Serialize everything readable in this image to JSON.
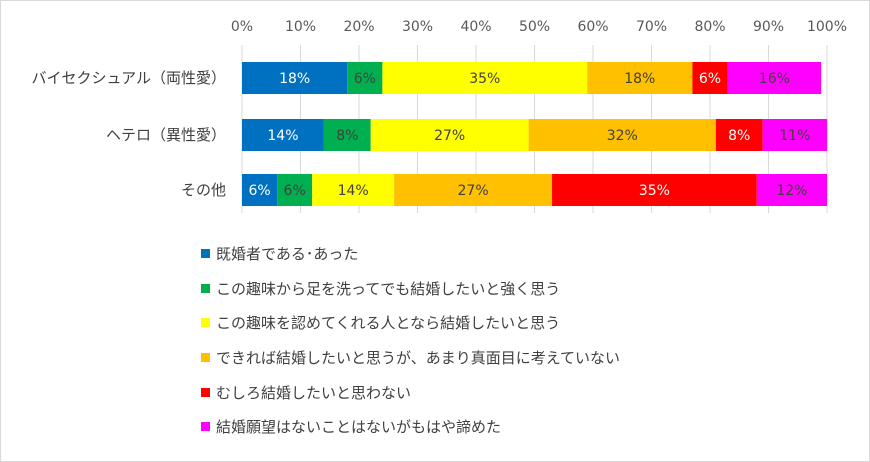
{
  "chart_data": {
    "type": "bar",
    "stacked": true,
    "orientation": "horizontal",
    "xlim": [
      0,
      100
    ],
    "x_ticks": [
      "0%",
      "10%",
      "20%",
      "30%",
      "40%",
      "50%",
      "60%",
      "70%",
      "80%",
      "90%",
      "100%"
    ],
    "grid": true,
    "legend_position": "bottom",
    "categories": [
      "バイセクシュアル（両性愛）",
      "ヘテロ（異性愛）",
      "その他"
    ],
    "series": [
      {
        "name": "既婚者である･あった",
        "color": "#0070C0",
        "values": [
          18,
          14,
          6
        ],
        "labels": [
          "18%",
          "14%",
          "6%"
        ]
      },
      {
        "name": "この趣味から足を洗ってでも結婚したいと強く思う",
        "color": "#00B050",
        "values": [
          6,
          8,
          6
        ],
        "labels": [
          "6%",
          "8%",
          "6%"
        ]
      },
      {
        "name": "この趣味を認めてくれる人となら結婚したいと思う",
        "color": "#FFFF00",
        "values": [
          35,
          27,
          14
        ],
        "labels": [
          "35%",
          "27%",
          "14%"
        ]
      },
      {
        "name": "できれば結婚したいと思うが、あまり真面目に考えていない",
        "color": "#FFC000",
        "values": [
          18,
          32,
          27
        ],
        "labels": [
          "18%",
          "32%",
          "27%"
        ]
      },
      {
        "name": "むしろ結婚したいと思わない",
        "color": "#FF0000",
        "values": [
          6,
          8,
          35
        ],
        "labels": [
          "6%",
          "8%",
          "35%"
        ]
      },
      {
        "name": "結婚願望はないことはないがもはや諦めた",
        "color": "#FF00FF",
        "values": [
          16,
          11,
          12
        ],
        "labels": [
          "16%",
          "11%",
          "12%"
        ]
      }
    ]
  }
}
